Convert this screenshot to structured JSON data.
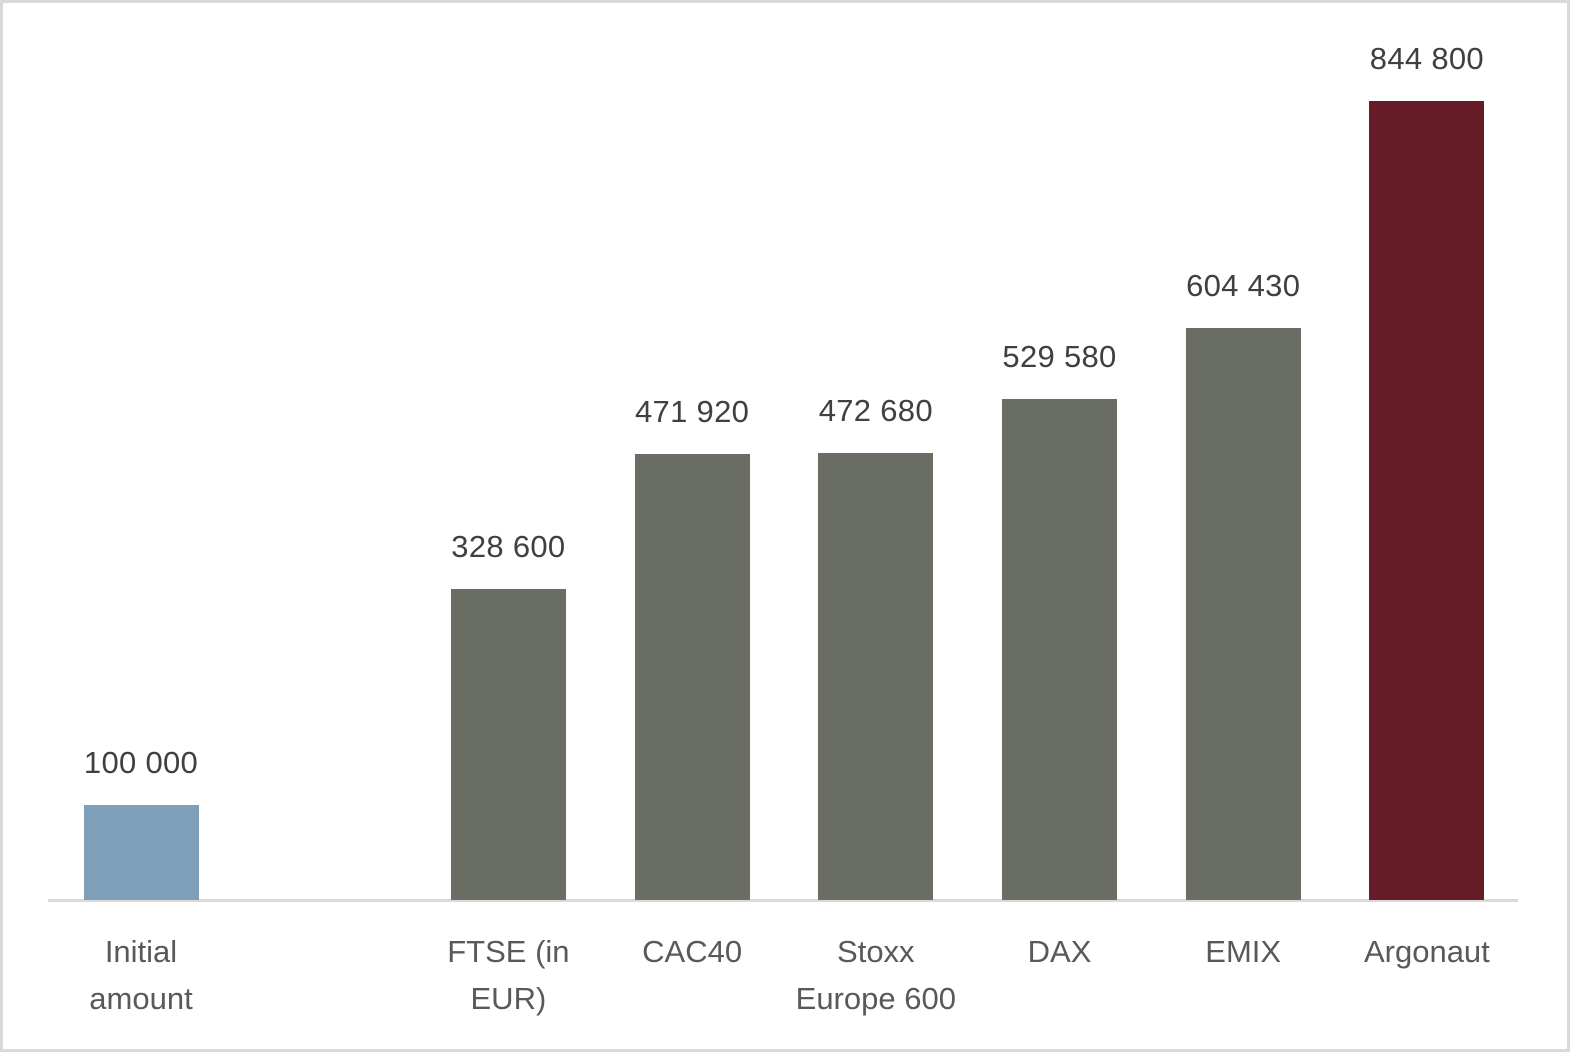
{
  "chart_data": {
    "type": "bar",
    "title": "",
    "xlabel": "",
    "ylabel": "",
    "ylim": [
      0,
      900000
    ],
    "grid": false,
    "legend": null,
    "categories": [
      "Initial amount",
      "",
      "FTSE (in EUR)",
      "CAC40",
      "Stoxx Europe 600",
      "DAX",
      "EMIX",
      "Argonaut"
    ],
    "values": [
      100000,
      null,
      328600,
      471920,
      472680,
      529580,
      604430,
      844800
    ],
    "data_labels": [
      "100 000",
      "",
      "328 600",
      "471 920",
      "472 680",
      "529 580",
      "604 430",
      "844 800"
    ],
    "colors": [
      "#7f9fb8",
      null,
      "#6a6d64",
      "#6a6d64",
      "#6a6d64",
      "#6a6d64",
      "#6a6d64",
      "#651c26"
    ]
  },
  "bars": [
    {
      "label": "Initial\namount",
      "value_text": "100 000",
      "value": 100000,
      "color": "#7f9fb8",
      "slot": 0
    },
    {
      "label": "FTSE (in\nEUR)",
      "value_text": "328 600",
      "value": 328600,
      "color": "#6a6d64",
      "slot": 2
    },
    {
      "label": "CAC40",
      "value_text": "471 920",
      "value": 471920,
      "color": "#6a6d64",
      "slot": 3
    },
    {
      "label": "Stoxx\nEurope 600",
      "value_text": "472 680",
      "value": 472680,
      "color": "#6a6d64",
      "slot": 4
    },
    {
      "label": "DAX",
      "value_text": "529 580",
      "value": 529580,
      "color": "#6a6d64",
      "slot": 5
    },
    {
      "label": "EMIX",
      "value_text": "604 430",
      "value": 604430,
      "color": "#6a6d64",
      "slot": 6
    },
    {
      "label": "Argonaut",
      "value_text": "844 800",
      "value": 844800,
      "color": "#651c26",
      "slot": 7
    }
  ]
}
